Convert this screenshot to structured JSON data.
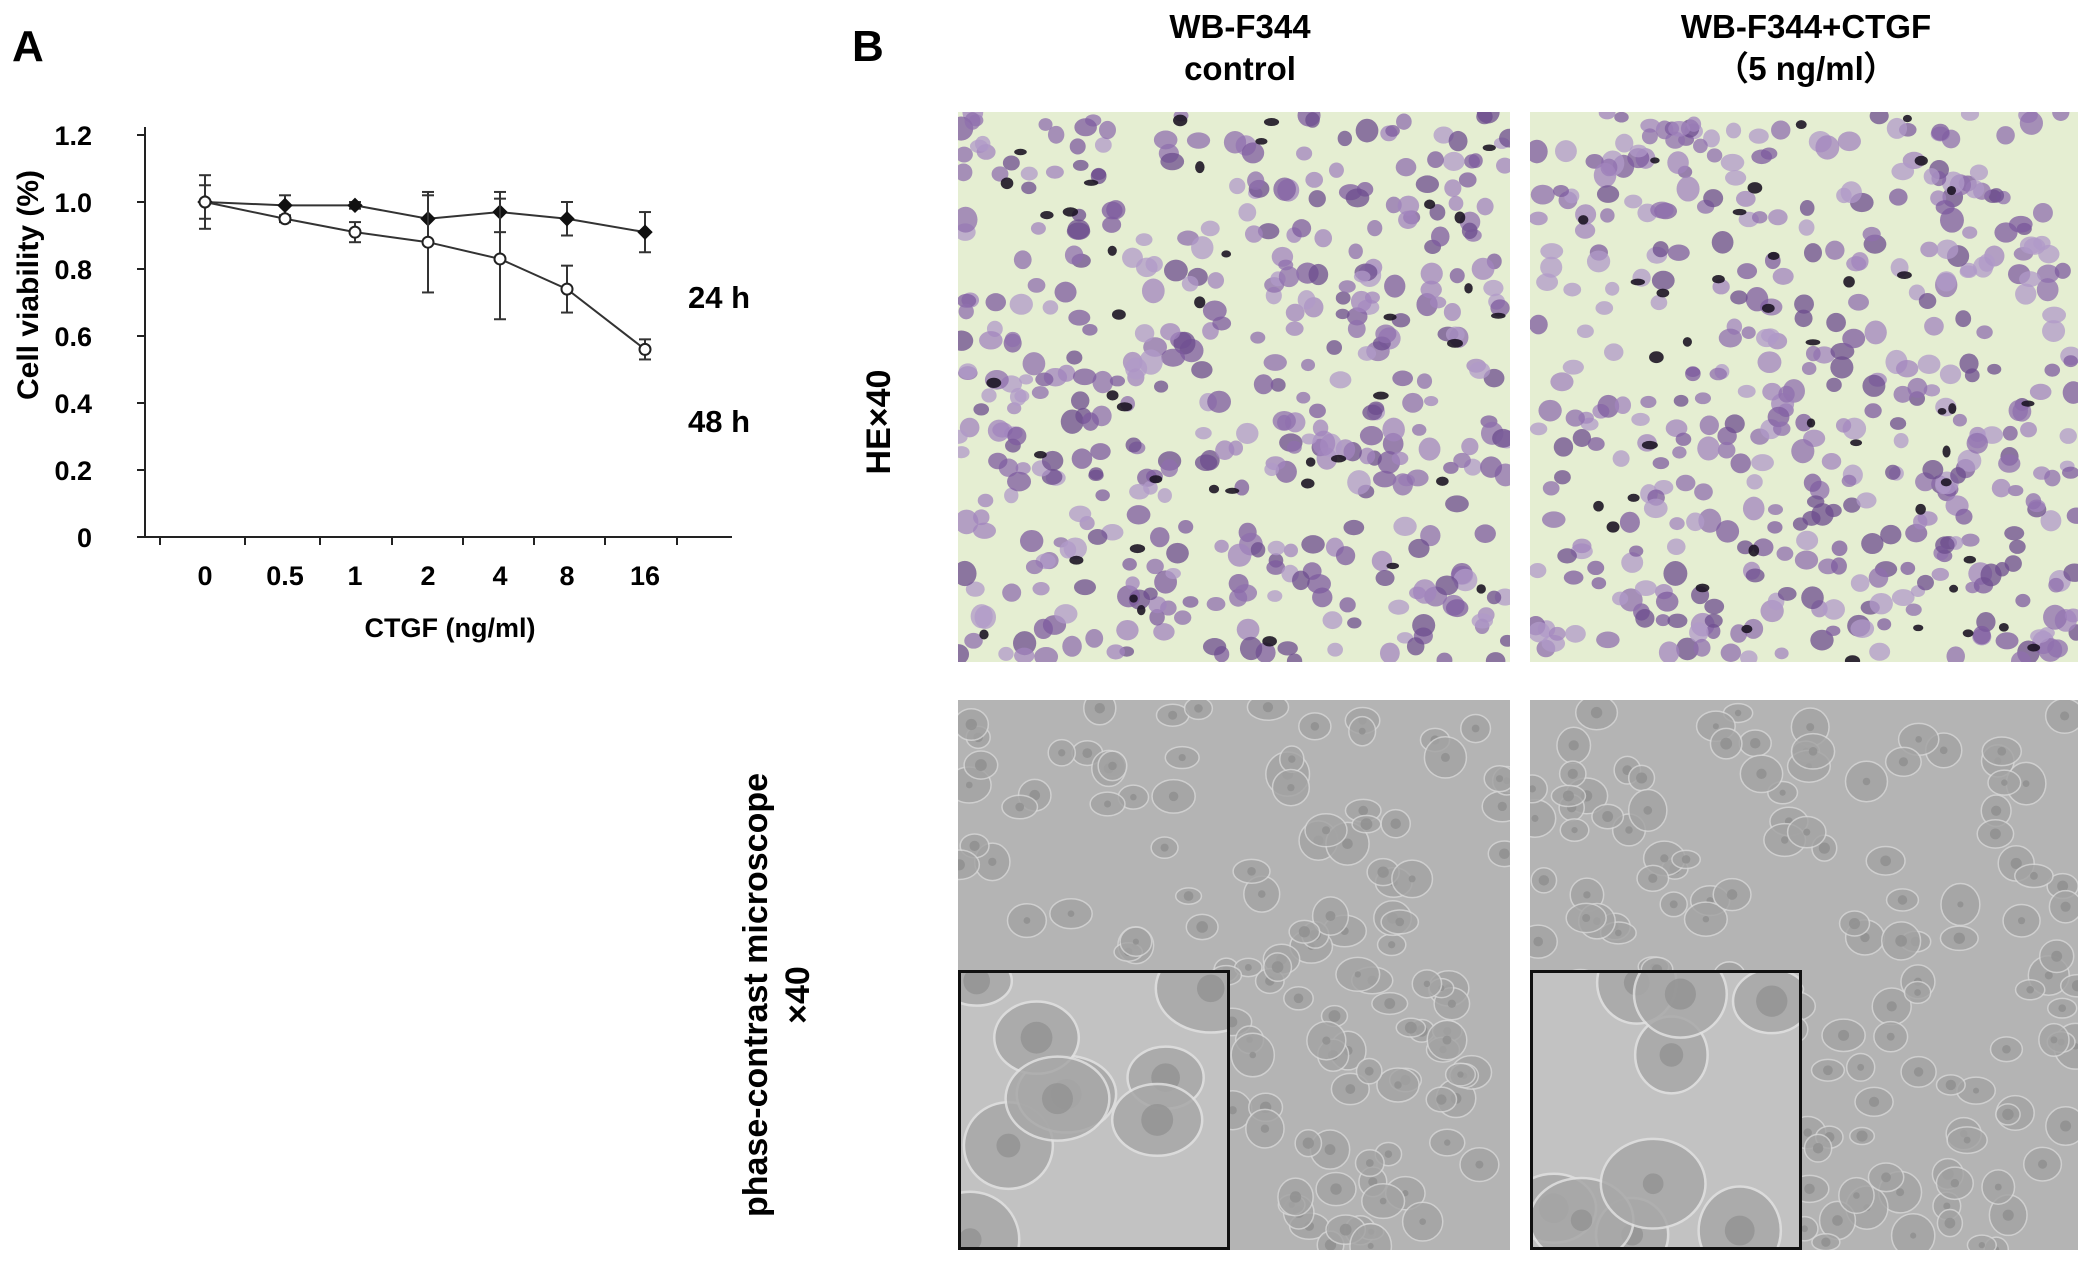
{
  "panel_a": {
    "letter": "A"
  },
  "panel_b": {
    "letter": "B",
    "columns": [
      {
        "line1": "WB-F344",
        "line2": "control"
      },
      {
        "line1": "WB-F344+CTGF",
        "line2": "（5 ng/ml）"
      }
    ],
    "row_he_label": "HE×40",
    "row_pc_label_line1": "phase-contrast microscope",
    "row_pc_label_line2": "×40"
  },
  "chart_data": {
    "type": "line",
    "xlabel": "CTGF (ng/ml)",
    "ylabel": "Cell viability (%)",
    "categories": [
      "0",
      "0.5",
      "1",
      "2",
      "4",
      "8",
      "16"
    ],
    "ylim": [
      0,
      1.2
    ],
    "yticks": [
      "0",
      "0.2",
      "0.4",
      "0.6",
      "0.8",
      "1.0",
      "1.2"
    ],
    "series": [
      {
        "name": "24 h",
        "marker": "filled-diamond",
        "values": [
          1.0,
          0.99,
          0.99,
          0.95,
          0.97,
          0.95,
          0.91
        ],
        "errors": [
          0.08,
          0.03,
          0.01,
          0.07,
          0.06,
          0.05,
          0.06
        ]
      },
      {
        "name": "48 h",
        "marker": "open-circle",
        "values": [
          1.0,
          0.95,
          0.91,
          0.88,
          0.83,
          0.74,
          0.56
        ],
        "errors": [
          0.05,
          0.01,
          0.03,
          0.15,
          0.18,
          0.07,
          0.03
        ]
      }
    ],
    "grid": false
  }
}
